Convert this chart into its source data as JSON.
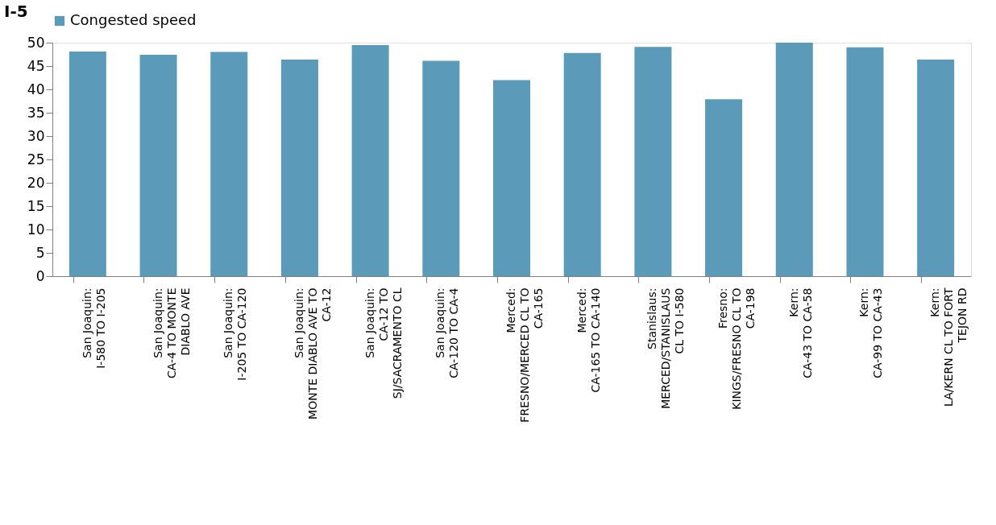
{
  "chart_data": {
    "type": "bar",
    "title": "I-5",
    "categories": [
      "San Joaquin:\nI-580 TO I-205",
      "San Joaquin:\nCA-4 TO MONTE\nDIABLO AVE",
      "San Joaquin:\nI-205 TO CA-120",
      "San Joaquin:\nMONTE DIABLO AVE  TO\nCA-12",
      "San Joaquin:\nCA-12 TO\nSJ/SACRAMENTO CL",
      "San Joaquin:\nCA-120 TO CA-4",
      "Merced:\nFRESNO/MERCED CL TO\nCA-165",
      "Merced:\nCA-165 TO CA-140",
      "Stanislaus:\nMERCED/STANISLAUS\nCL TO I-580",
      "Fresno:\nKINGS/FRESNO CL TO\nCA-198",
      "Kern:\nCA-43 TO CA-58",
      "Kern:\nCA-99 TO CA-43",
      "Kern:\nLA/KERN CL TO FORT\nTEJON RD"
    ],
    "series": [
      {
        "name": "Congested speed",
        "color": "#5b9ab8",
        "values": [
          48.1,
          47.4,
          48.0,
          46.4,
          49.5,
          46.1,
          42.0,
          47.8,
          49.1,
          37.9,
          50.0,
          49.0,
          46.4
        ]
      }
    ],
    "ylim": [
      0,
      50
    ],
    "yticks": [
      0,
      5,
      10,
      15,
      20,
      25,
      30,
      35,
      40,
      45,
      50
    ],
    "grid": false,
    "legend": "top"
  }
}
